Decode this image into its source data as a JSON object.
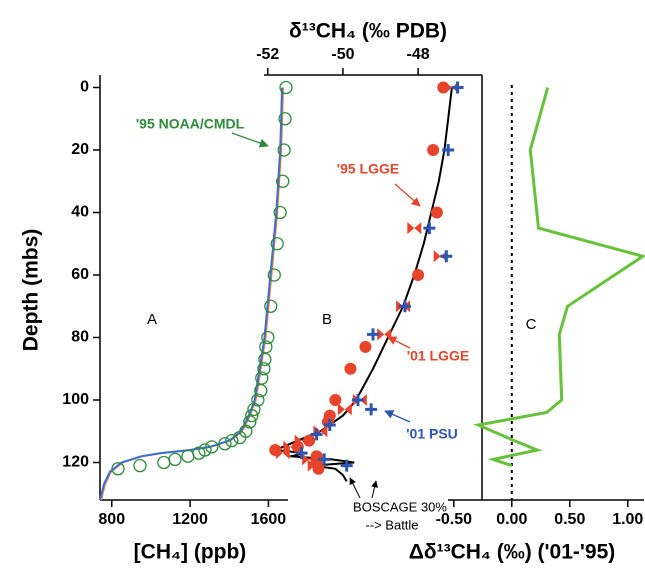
{
  "chart_data": [
    {
      "type": "profile",
      "panel_label": "A",
      "xlabel": "[CH₄] (ppb)",
      "ylabel": "Depth (mbs)",
      "xaxis": "bottom",
      "xlim": [
        740,
        1700
      ],
      "xticks": [
        800,
        1200,
        1600
      ],
      "ylim": [
        -4,
        132
      ],
      "yticks": [
        0,
        20,
        40,
        60,
        80,
        100,
        120
      ],
      "series": [
        {
          "color": "#f07f3c",
          "marker": "line",
          "depth": [
            0,
            20,
            40,
            60,
            80,
            100,
            105,
            110,
            113,
            115,
            116,
            117,
            118,
            120,
            123,
            127,
            132
          ],
          "values": [
            1675,
            1665,
            1645,
            1615,
            1585,
            1535,
            1505,
            1465,
            1405,
            1305,
            1205,
            1055,
            955,
            855,
            795,
            765,
            745
          ]
        },
        {
          "color": "#3a6fd8",
          "marker": "line",
          "depth": [
            0,
            20,
            40,
            60,
            80,
            100,
            105,
            110,
            113,
            115,
            116,
            117,
            118,
            120,
            123,
            127,
            132
          ],
          "values": [
            1670,
            1660,
            1640,
            1610,
            1580,
            1530,
            1500,
            1460,
            1400,
            1300,
            1200,
            1050,
            950,
            850,
            790,
            760,
            740
          ]
        },
        {
          "name": "'95 NOAA/CMDL",
          "color": "#2e8b3a",
          "marker": "circle-open",
          "depth": [
            0,
            10,
            20,
            30,
            40,
            50,
            60,
            70,
            80,
            83,
            87,
            90,
            93,
            97,
            100,
            103,
            105,
            107,
            110,
            112,
            113,
            114,
            115,
            116,
            117,
            118,
            119,
            120,
            121,
            122
          ],
          "values": [
            1690,
            1685,
            1680,
            1673,
            1660,
            1645,
            1630,
            1612,
            1597,
            1587,
            1582,
            1577,
            1566,
            1561,
            1546,
            1526,
            1515,
            1505,
            1485,
            1454,
            1413,
            1378,
            1311,
            1276,
            1245,
            1189,
            1123,
            1066,
            944,
            832
          ]
        }
      ]
    },
    {
      "type": "profile",
      "panel_label": "B",
      "xlabel": "δ¹³CH₄ (‰ PDB)",
      "xaxis": "top",
      "xlim": [
        -52.1,
        -46.3
      ],
      "xticks": [
        -52,
        -50,
        -48
      ],
      "ylim": [
        -4,
        132
      ],
      "annotations": [
        "BOSCAGE 30%",
        "--> Battle"
      ],
      "series": [
        {
          "color": "#000000",
          "marker": "line",
          "depth": [
            0,
            10,
            20,
            30,
            40,
            50,
            60,
            70,
            80,
            90,
            100,
            105,
            110,
            113,
            115,
            116,
            117,
            118,
            119,
            120,
            121,
            122,
            124,
            126
          ],
          "values": [
            -47.1,
            -47.2,
            -47.3,
            -47.45,
            -47.65,
            -47.85,
            -48.1,
            -48.4,
            -48.8,
            -49.2,
            -49.65,
            -50.0,
            -50.6,
            -51.2,
            -51.6,
            -51.8,
            -51.0,
            -51.4,
            -50.3,
            -49.7,
            -50.8,
            -50.2,
            -50.0,
            -49.9
          ]
        },
        {
          "name": "'95 LGGE",
          "color": "#e8432b",
          "marker": "circle",
          "depth": [
            0,
            20,
            40,
            60,
            83,
            90,
            100,
            105,
            107,
            113,
            115,
            116,
            118,
            120,
            122
          ],
          "values": [
            -47.33,
            -47.6,
            -47.5,
            -48.0,
            -49.4,
            -49.8,
            -50.2,
            -50.35,
            -50.4,
            -50.9,
            -51.2,
            -51.8,
            -50.7,
            -50.7,
            -50.65
          ]
        },
        {
          "name": "'01 LGGE",
          "color": "#e8432b",
          "marker": "bowtie",
          "depth": [
            0,
            45,
            54,
            70,
            79,
            100,
            103,
            110,
            113,
            115,
            117,
            119,
            121
          ],
          "values": [
            -47.1,
            -48.1,
            -47.4,
            -48.4,
            -48.9,
            -49.55,
            -49.95,
            -50.6,
            -51.1,
            -51.4,
            -51.6,
            -50.9,
            -50.75
          ]
        },
        {
          "name": "'01 PSU",
          "color": "#2a55b0",
          "marker": "plus",
          "depth": [
            0,
            20,
            45,
            54,
            70,
            79,
            100,
            103,
            108,
            111,
            117,
            119,
            121
          ],
          "values": [
            -46.95,
            -47.2,
            -47.7,
            -47.25,
            -48.35,
            -49.2,
            -49.6,
            -49.25,
            -50.35,
            -50.7,
            -51.1,
            -50.5,
            -49.9
          ]
        }
      ]
    },
    {
      "type": "profile",
      "panel_label": "C",
      "xlabel": "Δδ¹³CH₄ (‰) ('01-'95)",
      "xaxis": "bottom",
      "zero_line": true,
      "xlim": [
        -0.55,
        1.14
      ],
      "xticks": [
        {
          "value": -0.5,
          "label": "-0.50"
        },
        {
          "value": 0,
          "label": "0.00"
        },
        {
          "value": 0.5,
          "label": "0.50"
        },
        {
          "value": 1,
          "label": "1.00"
        }
      ],
      "ylim": [
        -4,
        132
      ],
      "series": [
        {
          "color": "#66c23a",
          "marker": "line",
          "depth": [
            0,
            20,
            45,
            54,
            70,
            79,
            100,
            104,
            108,
            113,
            116,
            119,
            121
          ],
          "values": [
            0.31,
            0.16,
            0.23,
            1.13,
            0.48,
            0.41,
            0.43,
            0.3,
            -0.29,
            0.02,
            0.22,
            -0.16,
            0.0
          ]
        }
      ]
    }
  ]
}
